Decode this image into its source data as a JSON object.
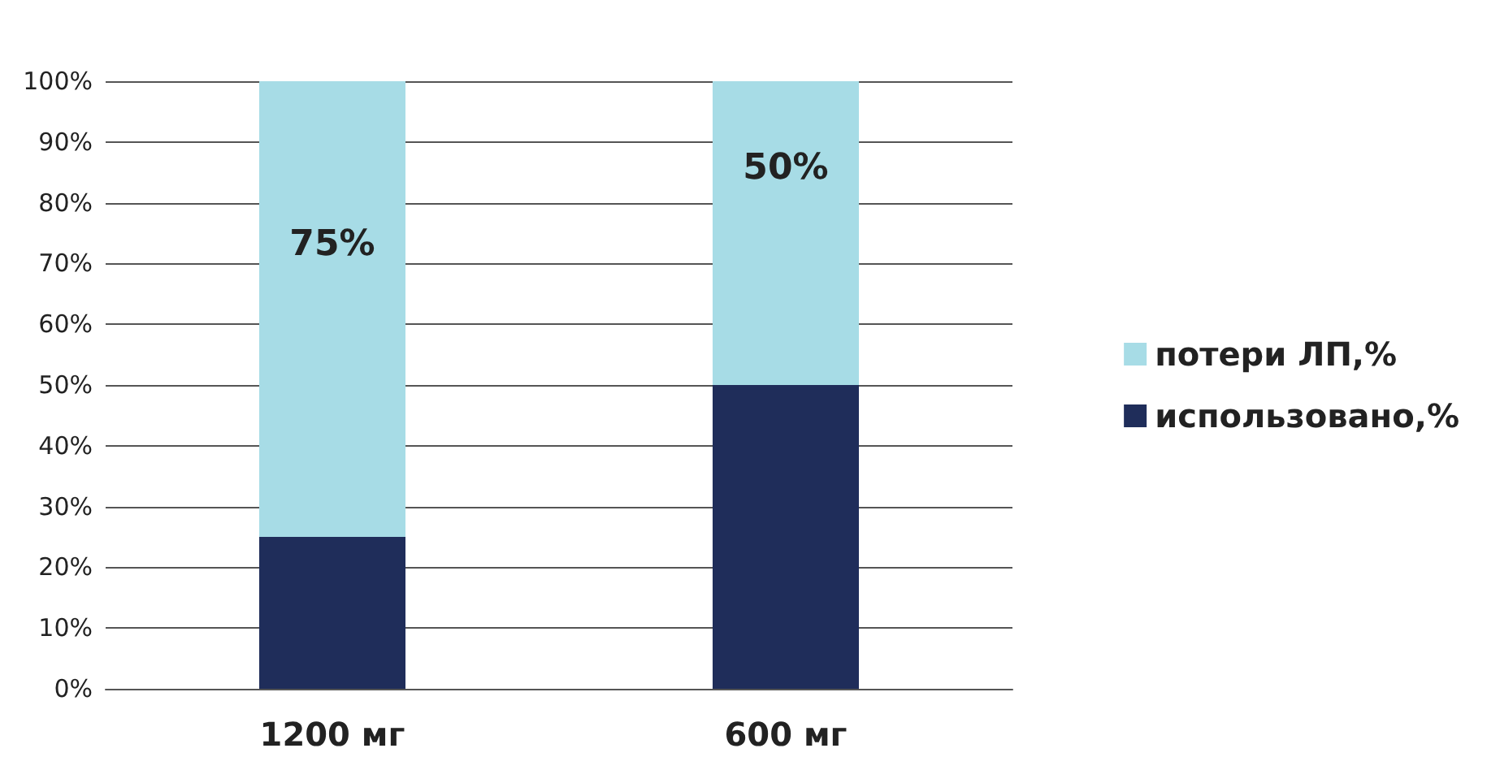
{
  "chart_data": {
    "type": "bar",
    "stacked": true,
    "categories": [
      "1200 мг",
      "600 мг"
    ],
    "series": [
      {
        "name": "использовано,%",
        "color": "#1f2d5a",
        "values": [
          25,
          50
        ]
      },
      {
        "name": "потери ЛП,%",
        "color": "#a7dce6",
        "values": [
          75,
          50
        ],
        "value_labels": [
          "75%",
          "50%"
        ]
      }
    ],
    "ylim": [
      0,
      100
    ],
    "yticks": [
      {
        "value": 0,
        "label": "0%"
      },
      {
        "value": 10,
        "label": "10%"
      },
      {
        "value": 20,
        "label": "20%"
      },
      {
        "value": 30,
        "label": "30%"
      },
      {
        "value": 40,
        "label": "40%"
      },
      {
        "value": 50,
        "label": "50%"
      },
      {
        "value": 60,
        "label": "60%"
      },
      {
        "value": 70,
        "label": "70%"
      },
      {
        "value": 80,
        "label": "80%"
      },
      {
        "value": 90,
        "label": "90%"
      },
      {
        "value": 100,
        "label": "100%"
      }
    ],
    "grid": true,
    "legend": "right"
  }
}
